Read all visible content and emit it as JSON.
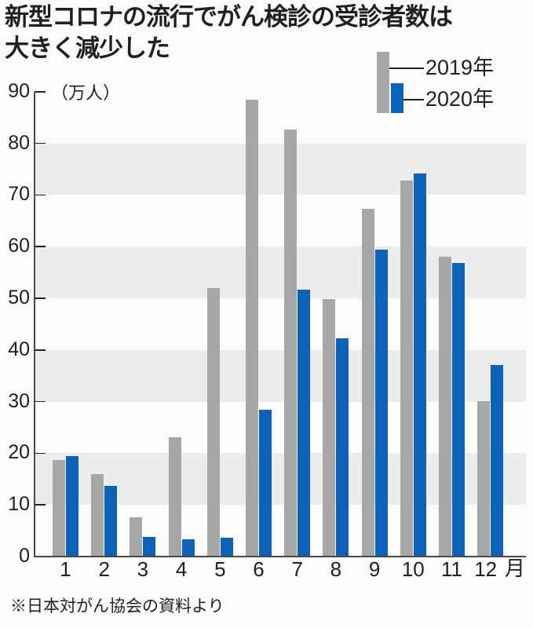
{
  "title": {
    "line1": "新型コロナの流行でがん検診の受診者数は",
    "line2": "大きく減少した"
  },
  "colors": {
    "series_2019": "#a7a7a7",
    "series_2020": "#0b62b8",
    "band": "#ececec",
    "axis": "#4a4a4a",
    "text": "#231f20",
    "background": "#fbfbfa"
  },
  "legend": {
    "items": [
      {
        "label": "2019年"
      },
      {
        "label": "2020年"
      }
    ]
  },
  "y_axis": {
    "unit_label": "（万人）",
    "ticks": [
      "0",
      "10",
      "20",
      "30",
      "40",
      "50",
      "60",
      "70",
      "80",
      "90"
    ]
  },
  "x_axis": {
    "ticks": [
      "1",
      "2",
      "3",
      "4",
      "5",
      "6",
      "7",
      "8",
      "9",
      "10",
      "11",
      "12"
    ],
    "unit_label": "月"
  },
  "footer": {
    "source": "※日本対がん協会の資料より"
  },
  "chart_data": {
    "type": "bar",
    "title": "新型コロナの流行でがん検診の受診者数は大きく減少した",
    "xlabel": "月",
    "ylabel": "（万人）",
    "ylim": [
      0,
      90
    ],
    "yticks": [
      0,
      10,
      20,
      30,
      40,
      50,
      60,
      70,
      80,
      90
    ],
    "grid": "alternating horizontal bands (10-20, 30-40, 50-60, 70-80)",
    "legend_position": "top-right",
    "categories": [
      "1",
      "2",
      "3",
      "4",
      "5",
      "6",
      "7",
      "8",
      "9",
      "10",
      "11",
      "12"
    ],
    "series": [
      {
        "name": "2019年",
        "color": "#a7a7a7",
        "values": [
          18.7,
          16.0,
          7.6,
          23.1,
          52.0,
          88.4,
          82.7,
          49.8,
          67.3,
          72.8,
          58.1,
          30.1
        ]
      },
      {
        "name": "2020年",
        "color": "#0b62b8",
        "values": [
          19.5,
          13.7,
          3.8,
          3.4,
          3.7,
          28.4,
          51.6,
          42.2,
          59.4,
          74.2,
          56.8,
          37.1
        ]
      }
    ],
    "source": "※日本対がん協会の資料より"
  }
}
